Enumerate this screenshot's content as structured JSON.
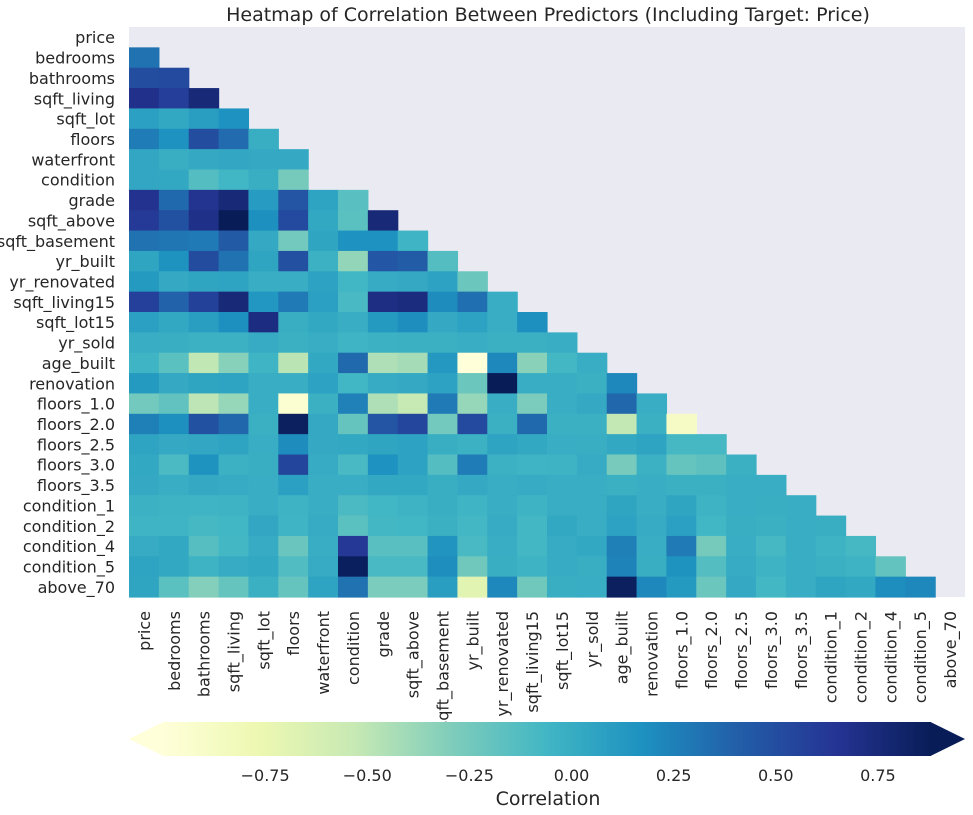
{
  "chart_data": {
    "type": "heatmap",
    "title": "Heatmap of Correlation Between Predictors (Including Target: Price)",
    "variables": [
      "price",
      "bedrooms",
      "bathrooms",
      "sqft_living",
      "sqft_lot",
      "floors",
      "waterfront",
      "condition",
      "grade",
      "sqft_above",
      "sqft_basement",
      "yr_built",
      "yr_renovated",
      "sqft_living15",
      "sqft_lot15",
      "yr_sold",
      "age_built",
      "renovation",
      "floors_1.0",
      "floors_2.0",
      "floors_2.5",
      "floors_3.0",
      "floors_3.5",
      "condition_1",
      "condition_2",
      "condition_4",
      "condition_5",
      "above_70"
    ],
    "mask": "upper triangle including diagonal",
    "lower_triangle_rows": [
      [],
      [
        0.32
      ],
      [
        0.5,
        0.52
      ],
      [
        0.68,
        0.59,
        0.76
      ],
      [
        0.08,
        0.03,
        0.09,
        0.17
      ],
      [
        0.27,
        0.17,
        0.5,
        0.35,
        -0.01
      ],
      [
        0.04,
        -0.01,
        0.02,
        0.04,
        0.02,
        0.02
      ],
      [
        0.04,
        0.03,
        -0.13,
        -0.06,
        -0.01,
        -0.26
      ],
      [
        0.67,
        0.36,
        0.66,
        0.76,
        0.11,
        0.46,
        0.06,
        -0.15
      ],
      [
        0.61,
        0.48,
        0.69,
        0.88,
        0.18,
        0.52,
        0.03,
        -0.16,
        0.76
      ],
      [
        0.32,
        0.3,
        0.28,
        0.43,
        0.02,
        -0.25,
        0.05,
        0.17,
        0.17,
        -0.05
      ],
      [
        0.05,
        0.16,
        0.51,
        0.32,
        0.05,
        0.49,
        -0.03,
        -0.36,
        0.45,
        0.42,
        -0.13
      ],
      [
        0.12,
        0.02,
        0.05,
        0.06,
        0.0,
        0.0,
        0.07,
        -0.06,
        0.01,
        0.02,
        0.07,
        -0.22
      ],
      [
        0.58,
        0.39,
        0.57,
        0.76,
        0.14,
        0.28,
        0.08,
        -0.09,
        0.71,
        0.73,
        0.2,
        0.33,
        0.0
      ],
      [
        0.08,
        0.03,
        0.09,
        0.18,
        0.72,
        -0.01,
        0.03,
        -0.0,
        0.12,
        0.19,
        0.02,
        0.07,
        0.0,
        0.18
      ],
      [
        0.0,
        -0.01,
        -0.03,
        -0.03,
        0.01,
        -0.02,
        0.0,
        -0.05,
        -0.03,
        -0.02,
        -0.02,
        0.0,
        -0.02,
        -0.02,
        0.0
      ],
      [
        -0.05,
        -0.16,
        -0.51,
        -0.32,
        -0.05,
        -0.49,
        0.03,
        0.36,
        -0.45,
        -0.42,
        0.13,
        -1.0,
        0.22,
        -0.33,
        -0.07,
        0.0
      ],
      [
        0.12,
        0.02,
        0.05,
        0.06,
        0.0,
        0.0,
        0.07,
        -0.06,
        0.01,
        0.02,
        0.07,
        -0.22,
        1.0,
        0.0,
        0.0,
        -0.02,
        0.22
      ],
      [
        -0.25,
        -0.18,
        -0.5,
        -0.37,
        0.0,
        -0.95,
        -0.02,
        0.25,
        -0.45,
        -0.53,
        0.28,
        -0.37,
        0.0,
        -0.28,
        0.0,
        0.02,
        0.37,
        0.0
      ],
      [
        0.26,
        0.18,
        0.48,
        0.37,
        -0.02,
        0.85,
        0.02,
        -0.2,
        0.46,
        0.54,
        -0.25,
        0.52,
        -0.02,
        0.36,
        -0.02,
        -0.02,
        -0.52,
        -0.02,
        -0.88
      ],
      [
        0.06,
        0.02,
        0.04,
        0.06,
        0.0,
        0.2,
        0.02,
        0.03,
        0.05,
        0.07,
        -0.01,
        -0.03,
        0.06,
        0.03,
        0.0,
        -0.01,
        0.03,
        0.06,
        -0.08,
        -0.08
      ],
      [
        0.03,
        -0.1,
        0.16,
        -0.03,
        -0.01,
        0.55,
        0.01,
        -0.09,
        0.17,
        0.07,
        -0.13,
        0.27,
        -0.03,
        -0.05,
        -0.04,
        0.01,
        -0.27,
        -0.03,
        -0.2,
        -0.17,
        -0.02
      ],
      [
        0.02,
        0.0,
        0.02,
        0.01,
        -0.0,
        0.08,
        0.0,
        0.0,
        0.03,
        0.03,
        -0.01,
        0.02,
        0.0,
        0.01,
        0.0,
        0.0,
        -0.02,
        0.0,
        -0.02,
        -0.02,
        0.0,
        0.0
      ],
      [
        -0.03,
        -0.04,
        -0.05,
        -0.04,
        0.0,
        -0.04,
        0.0,
        -0.1,
        -0.06,
        -0.04,
        -0.01,
        -0.05,
        0.0,
        -0.04,
        0.0,
        0.0,
        0.05,
        0.0,
        0.05,
        -0.04,
        -0.0,
        -0.01,
        0.0
      ],
      [
        -0.05,
        -0.05,
        -0.08,
        -0.06,
        0.04,
        -0.05,
        0.01,
        -0.16,
        -0.07,
        -0.06,
        -0.02,
        -0.07,
        0.01,
        -0.07,
        0.03,
        0.0,
        0.07,
        0.01,
        0.08,
        -0.06,
        -0.01,
        -0.02,
        0.0,
        -0.01
      ],
      [
        0.01,
        0.03,
        -0.14,
        -0.07,
        0.01,
        -0.21,
        0.0,
        0.62,
        -0.15,
        -0.15,
        0.15,
        -0.09,
        0.0,
        -0.07,
        0.01,
        0.03,
        0.26,
        0.0,
        0.28,
        -0.26,
        0.0,
        -0.08,
        0.0,
        -0.04,
        -0.08
      ],
      [
        0.06,
        0.03,
        -0.04,
        0.01,
        0.03,
        -0.12,
        0.01,
        0.86,
        -0.09,
        -0.09,
        0.19,
        -0.24,
        -0.01,
        -0.04,
        0.01,
        -0.01,
        0.24,
        -0.01,
        0.16,
        -0.13,
        0.01,
        -0.04,
        0.0,
        -0.02,
        -0.04,
        -0.19
      ],
      [
        0.05,
        -0.16,
        -0.31,
        -0.2,
        -0.02,
        -0.2,
        0.06,
        0.32,
        -0.28,
        -0.28,
        0.09,
        -0.7,
        0.22,
        -0.24,
        -0.01,
        0.0,
        0.85,
        0.22,
        0.12,
        -0.22,
        0.02,
        -0.07,
        0.0,
        0.05,
        0.03,
        0.19,
        0.22
      ]
    ],
    "colorbar": {
      "label": "Correlation",
      "ticks": [
        "−0.75",
        "−0.50",
        "−0.25",
        "0.00",
        "0.25",
        "0.50",
        "0.75"
      ],
      "tick_values": [
        -0.75,
        -0.5,
        -0.25,
        0,
        0.25,
        0.5,
        0.75
      ],
      "vmin": -1.0,
      "vmax": 0.88,
      "colormap": "YlGnBu",
      "extend": "both",
      "orientation": "horizontal"
    },
    "colors": {
      "axes_background": "#eaeaf2",
      "colormap_stops": [
        "#ffffd9",
        "#edf8b1",
        "#c7e9b4",
        "#7fcdbb",
        "#41b6c4",
        "#1d91c0",
        "#225ea8",
        "#253494",
        "#081d58"
      ]
    }
  }
}
